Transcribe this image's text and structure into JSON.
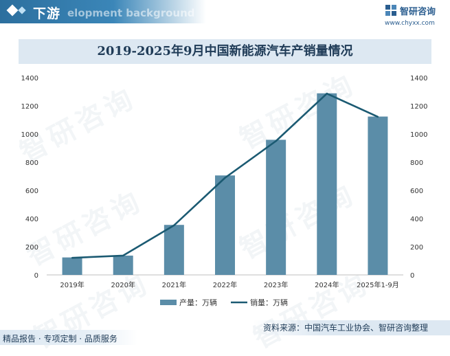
{
  "header": {
    "title": "下游",
    "subtitle": "elopment background"
  },
  "logo": {
    "name": "智研咨询",
    "url": "www.chyxx.com"
  },
  "chart_data": {
    "type": "bar",
    "title": "2019-2025年9月中国新能源汽车产销量情况",
    "categories": [
      "2019年",
      "2020年",
      "2021年",
      "2022年",
      "2023年",
      "2024年",
      "2025年1-9月"
    ],
    "series": [
      {
        "name": "产量：万辆",
        "type": "bar",
        "color": "#5b8da8",
        "values": [
          124,
          137,
          355,
          706,
          959,
          1289,
          1124
        ]
      },
      {
        "name": "销量：万辆",
        "type": "line",
        "color": "#1b5a72",
        "values": [
          121,
          137,
          352,
          689,
          950,
          1287,
          1122
        ]
      }
    ],
    "ylim": [
      0,
      1400
    ],
    "yticks": [
      0,
      200,
      400,
      600,
      800,
      1000,
      1200,
      1400
    ],
    "y2lim": [
      0,
      1400
    ],
    "y2ticks": [
      0,
      200,
      400,
      600,
      800,
      1000,
      1200,
      1400
    ],
    "xlabel": "",
    "ylabel": "",
    "legend": "bottom-center",
    "grid": false
  },
  "footer": {
    "source": "资料来源：中国汽车工业协会、智研咨询整理",
    "tagline": "精品报告 · 专项定制 · 品质服务"
  }
}
